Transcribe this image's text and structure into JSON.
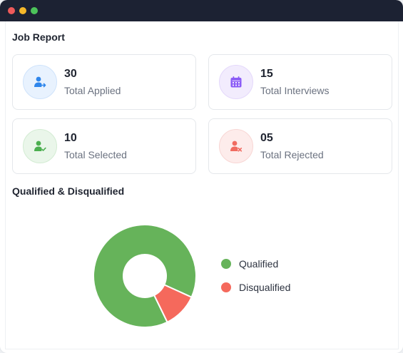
{
  "job_report": {
    "title": "Job Report",
    "cards": [
      {
        "value": "30",
        "label": "Total Applied",
        "icon": "user-arrow-icon",
        "color": "#2f86eb"
      },
      {
        "value": "15",
        "label": "Total Interviews",
        "icon": "calendar-icon",
        "color": "#8b5cf6"
      },
      {
        "value": "10",
        "label": "Total Selected",
        "icon": "user-check-icon",
        "color": "#4caf50"
      },
      {
        "value": "05",
        "label": "Total Rejected",
        "icon": "user-x-icon",
        "color": "#f06b60"
      }
    ]
  },
  "qualification": {
    "title": "Qualified & Disqualified"
  },
  "chart_data": {
    "type": "pie",
    "categories": [
      "Qualified",
      "Disqualified"
    ],
    "values": [
      89,
      11
    ],
    "colors": [
      "#66b35a",
      "#f5695c"
    ],
    "legend_position": "right"
  }
}
